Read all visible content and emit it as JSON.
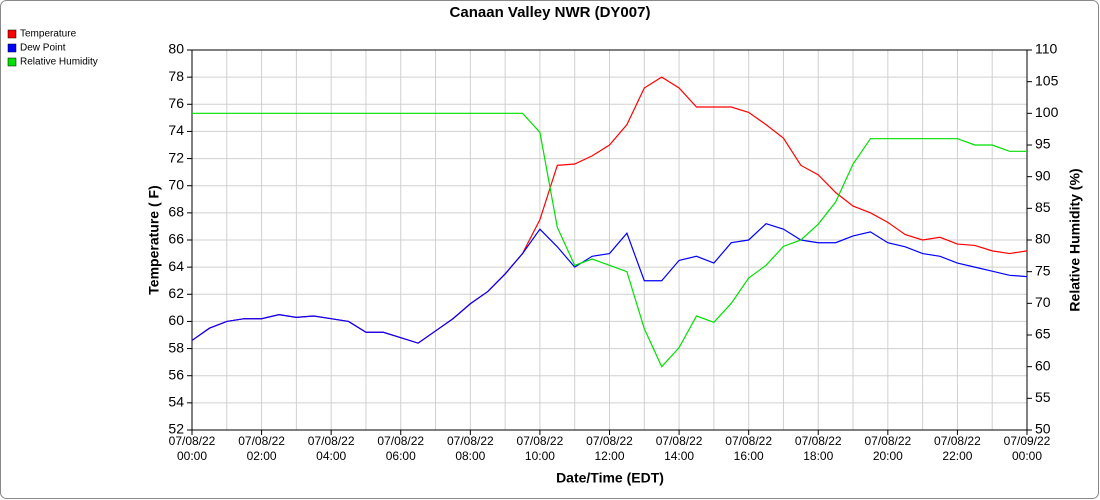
{
  "chart_data": {
    "type": "line",
    "title": "Canaan Valley NWR (DY007)",
    "xlabel": "Date/Time (EDT)",
    "ylabel": "Temperature ( F)",
    "y2label": "Relative Humidity (%)",
    "grid": true,
    "legend": "top-left",
    "x": [
      "07/08/22 00:00",
      "07/08/22 00:30",
      "07/08/22 01:00",
      "07/08/22 01:30",
      "07/08/22 02:00",
      "07/08/22 02:30",
      "07/08/22 03:00",
      "07/08/22 03:30",
      "07/08/22 04:00",
      "07/08/22 04:30",
      "07/08/22 05:00",
      "07/08/22 05:30",
      "07/08/22 06:00",
      "07/08/22 06:30",
      "07/08/22 07:00",
      "07/08/22 07:30",
      "07/08/22 08:00",
      "07/08/22 08:30",
      "07/08/22 09:00",
      "07/08/22 09:30",
      "07/08/22 10:00",
      "07/08/22 10:30",
      "07/08/22 11:00",
      "07/08/22 11:30",
      "07/08/22 12:00",
      "07/08/22 12:30",
      "07/08/22 13:00",
      "07/08/22 13:30",
      "07/08/22 14:00",
      "07/08/22 14:30",
      "07/08/22 15:00",
      "07/08/22 15:30",
      "07/08/22 16:00",
      "07/08/22 16:30",
      "07/08/22 17:00",
      "07/08/22 17:30",
      "07/08/22 18:00",
      "07/08/22 18:30",
      "07/08/22 19:00",
      "07/08/22 19:30",
      "07/08/22 20:00",
      "07/08/22 20:30",
      "07/08/22 21:00",
      "07/08/22 21:30",
      "07/08/22 22:00",
      "07/08/22 22:30",
      "07/08/22 23:00",
      "07/08/22 23:30",
      "07/09/22 00:00"
    ],
    "xticks": [
      {
        "date": "07/08/22",
        "time": "00:00"
      },
      {
        "date": "07/08/22",
        "time": "02:00"
      },
      {
        "date": "07/08/22",
        "time": "04:00"
      },
      {
        "date": "07/08/22",
        "time": "06:00"
      },
      {
        "date": "07/08/22",
        "time": "08:00"
      },
      {
        "date": "07/08/22",
        "time": "10:00"
      },
      {
        "date": "07/08/22",
        "time": "12:00"
      },
      {
        "date": "07/08/22",
        "time": "14:00"
      },
      {
        "date": "07/08/22",
        "time": "16:00"
      },
      {
        "date": "07/08/22",
        "time": "18:00"
      },
      {
        "date": "07/08/22",
        "time": "20:00"
      },
      {
        "date": "07/08/22",
        "time": "22:00"
      },
      {
        "date": "07/09/22",
        "time": "00:00"
      }
    ],
    "ylim": [
      52,
      80
    ],
    "yticks": [
      52,
      54,
      56,
      58,
      60,
      62,
      64,
      66,
      68,
      70,
      72,
      74,
      76,
      78,
      80
    ],
    "y2lim": [
      50,
      110
    ],
    "y2ticks": [
      50,
      55,
      60,
      65,
      70,
      75,
      80,
      85,
      90,
      95,
      100,
      105,
      110
    ],
    "series": [
      {
        "name": "Temperature",
        "color": "#ff0000",
        "values": [
          58.6,
          59.5,
          60.0,
          60.2,
          60.2,
          60.5,
          60.3,
          60.4,
          60.2,
          60.0,
          59.2,
          59.2,
          58.8,
          58.4,
          59.3,
          60.2,
          61.3,
          62.2,
          63.5,
          65.0,
          67.5,
          71.5,
          71.6,
          72.2,
          73.0,
          74.5,
          77.2,
          78.0,
          77.2,
          75.8,
          75.8,
          75.8,
          75.4,
          74.5,
          73.5,
          71.5,
          70.8,
          69.5,
          68.5,
          68.0,
          67.3,
          66.4,
          66.0,
          66.2,
          65.7,
          65.6,
          65.2,
          65.0,
          65.2
        ]
      },
      {
        "name": "Dew Point",
        "color": "#0000ff",
        "values": [
          58.6,
          59.5,
          60.0,
          60.2,
          60.2,
          60.5,
          60.3,
          60.4,
          60.2,
          60.0,
          59.2,
          59.2,
          58.8,
          58.4,
          59.3,
          60.2,
          61.3,
          62.2,
          63.5,
          65.0,
          66.8,
          65.5,
          64.0,
          64.8,
          65.0,
          66.5,
          63.0,
          63.0,
          64.5,
          64.8,
          64.3,
          65.8,
          66.0,
          67.2,
          66.8,
          66.0,
          65.8,
          65.8,
          66.3,
          66.6,
          65.8,
          65.5,
          65.0,
          64.8,
          64.3,
          64.0,
          63.7,
          63.4,
          63.3
        ]
      },
      {
        "name": "Relative Humidity",
        "color": "#00e000",
        "axis": "y2",
        "values": [
          100,
          100,
          100,
          100,
          100,
          100,
          100,
          100,
          100,
          100,
          100,
          100,
          100,
          100,
          100,
          100,
          100,
          100,
          100,
          100,
          97,
          82,
          76,
          77,
          76,
          75,
          66,
          60,
          63,
          68,
          67,
          70,
          74,
          76,
          79,
          80,
          82.5,
          86,
          92,
          96,
          96,
          96,
          96,
          96,
          96,
          95,
          95,
          94,
          94
        ]
      }
    ]
  }
}
